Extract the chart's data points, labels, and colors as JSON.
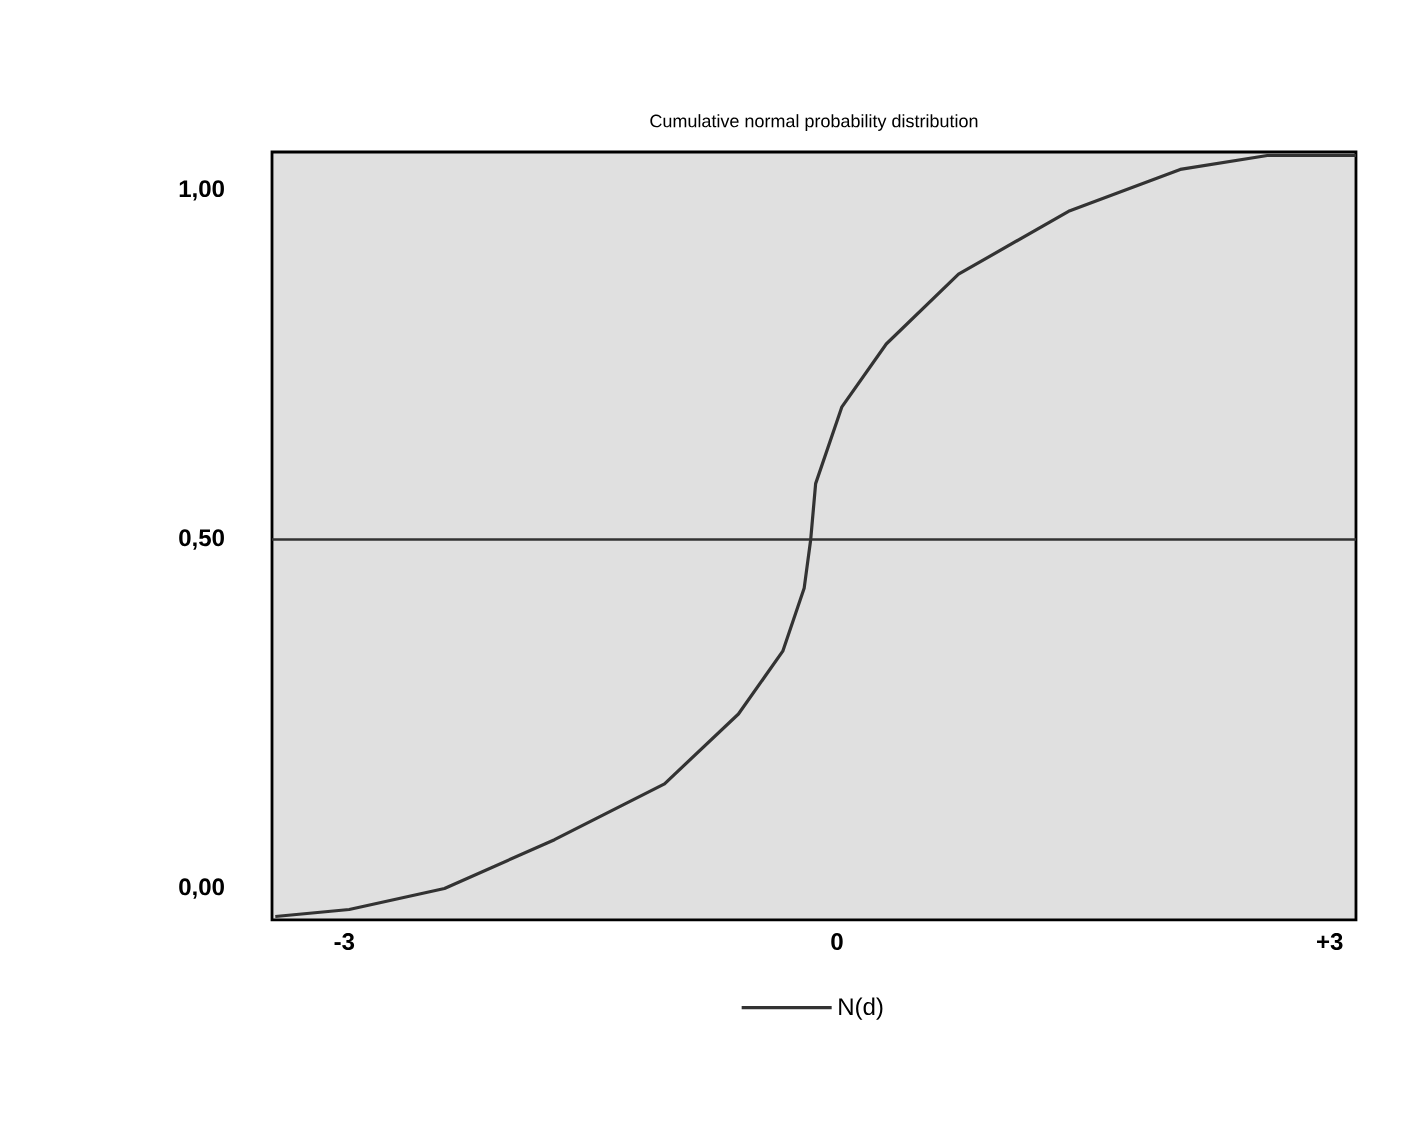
{
  "chart_data": {
    "type": "line",
    "title": "Cumulative normal probability distribution",
    "x": [
      -3.42,
      -2.97,
      -2.39,
      -1.72,
      -1.05,
      -0.6,
      -0.33,
      -0.2,
      -0.16,
      -0.13,
      0.03,
      0.3,
      0.74,
      1.41,
      2.09,
      2.62,
      3.16
    ],
    "series": [
      {
        "name": "N(d)",
        "color": "#333333",
        "values": [
          -0.04,
          -0.03,
          0.0,
          0.07,
          0.15,
          0.25,
          0.34,
          0.43,
          0.5,
          0.58,
          0.69,
          0.78,
          0.88,
          0.97,
          1.03,
          1.05,
          1.05
        ]
      }
    ],
    "xlim": [
      -3.44,
      3.16
    ],
    "ylim": [
      -0.045,
      1.055
    ],
    "xticks": [
      -3,
      0,
      {
        "value": 3,
        "label": "+3"
      }
    ],
    "yticks": [
      {
        "value": 0,
        "label": "0,00"
      },
      {
        "value": 0.5,
        "label": "0,50"
      },
      {
        "value": 1,
        "label": "1,00"
      }
    ],
    "ref_lines": [
      {
        "axis": "y",
        "value": 0.5,
        "color": "#333333"
      }
    ],
    "legend": "bottom",
    "grid": false,
    "marker": "none",
    "line_style": "solid"
  }
}
